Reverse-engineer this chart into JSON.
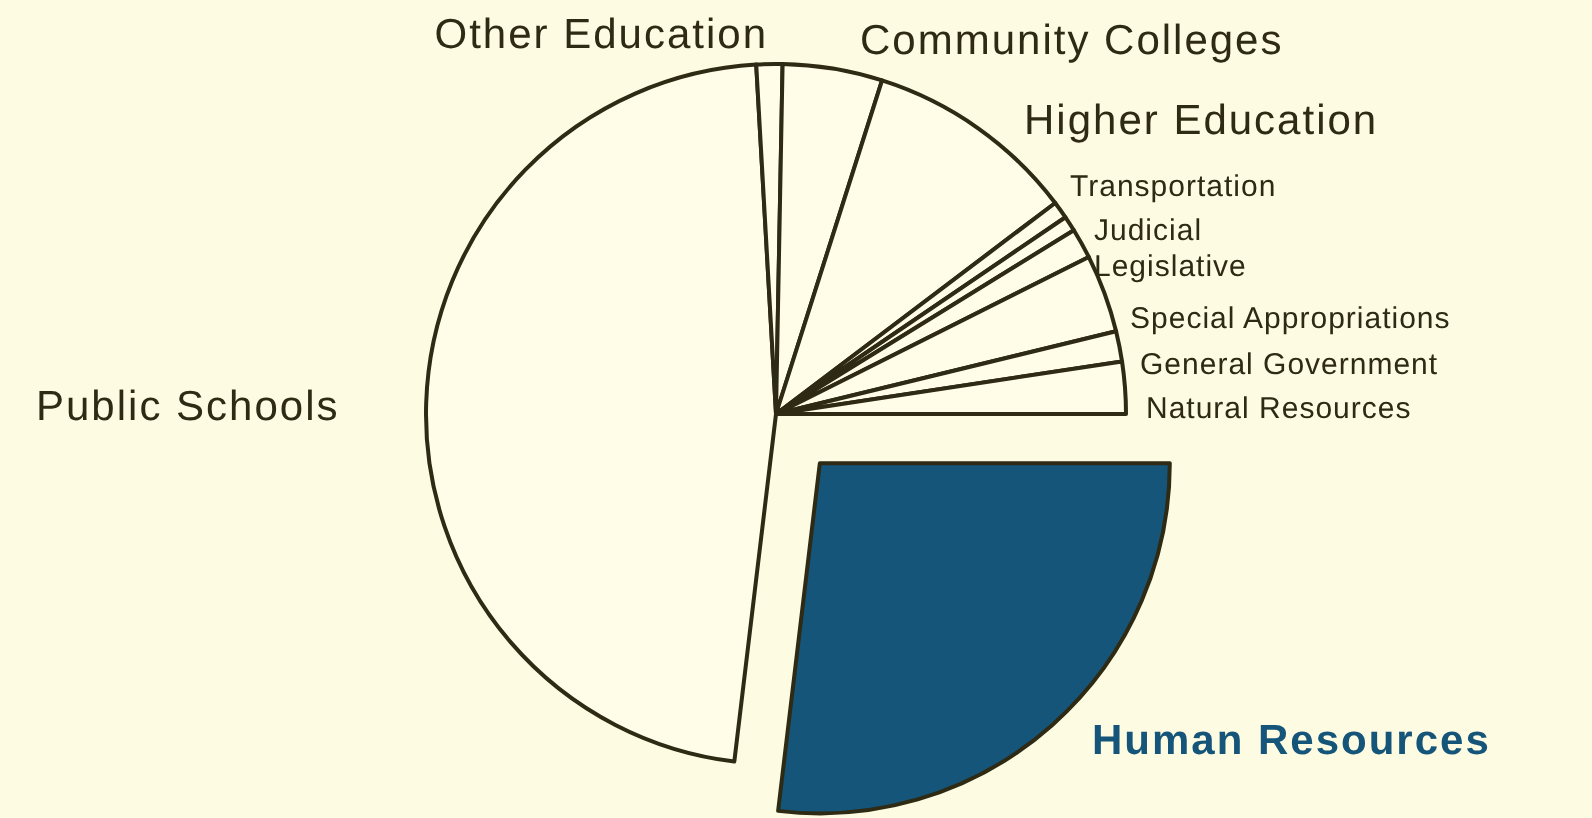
{
  "chart_data": {
    "type": "pie",
    "categories": [
      "Human Resources",
      "Public Schools",
      "Other Education",
      "Community Colleges",
      "Higher Education",
      "Transportation",
      "Judicial",
      "Legislative",
      "Special Appropriations",
      "General Government",
      "Natural Resources"
    ],
    "values": [
      26.9,
      47.2,
      1.2,
      4.6,
      9.8,
      0.8,
      0.7,
      1.4,
      3.6,
      1.4,
      2.4
    ],
    "colors": [
      "#15557a",
      "#fffde8",
      "#fffde8",
      "#fffde8",
      "#fffde8",
      "#fffde8",
      "#fffde8",
      "#fffde8",
      "#fffde8",
      "#fffde8",
      "#fffde8"
    ]
  }
}
